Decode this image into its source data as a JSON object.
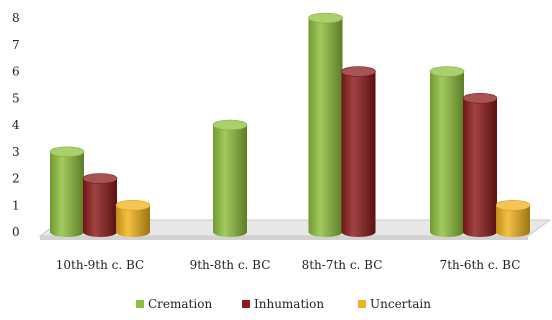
{
  "chart_data": {
    "type": "bar",
    "style": "3d-cylinder",
    "categories": [
      "10th-9th c. BC",
      "9th-8th c. BC",
      "8th-7th c. BC",
      "7th-6th c. BC"
    ],
    "series": [
      {
        "name": "Cremation",
        "values": [
          3,
          4,
          8,
          6
        ],
        "color": "#8dbf3c"
      },
      {
        "name": "Inhumation",
        "values": [
          2,
          null,
          6,
          5
        ],
        "color": "#8b1a1a"
      },
      {
        "name": "Uncertain",
        "values": [
          1,
          null,
          null,
          1
        ],
        "color": "#f0b21c"
      }
    ],
    "title": "",
    "xlabel": "",
    "ylabel": "",
    "ylim": [
      0,
      8
    ],
    "yticks": [
      0,
      1,
      2,
      3,
      4,
      5,
      6,
      7,
      8
    ],
    "grid": false,
    "legend_position": "bottom"
  }
}
